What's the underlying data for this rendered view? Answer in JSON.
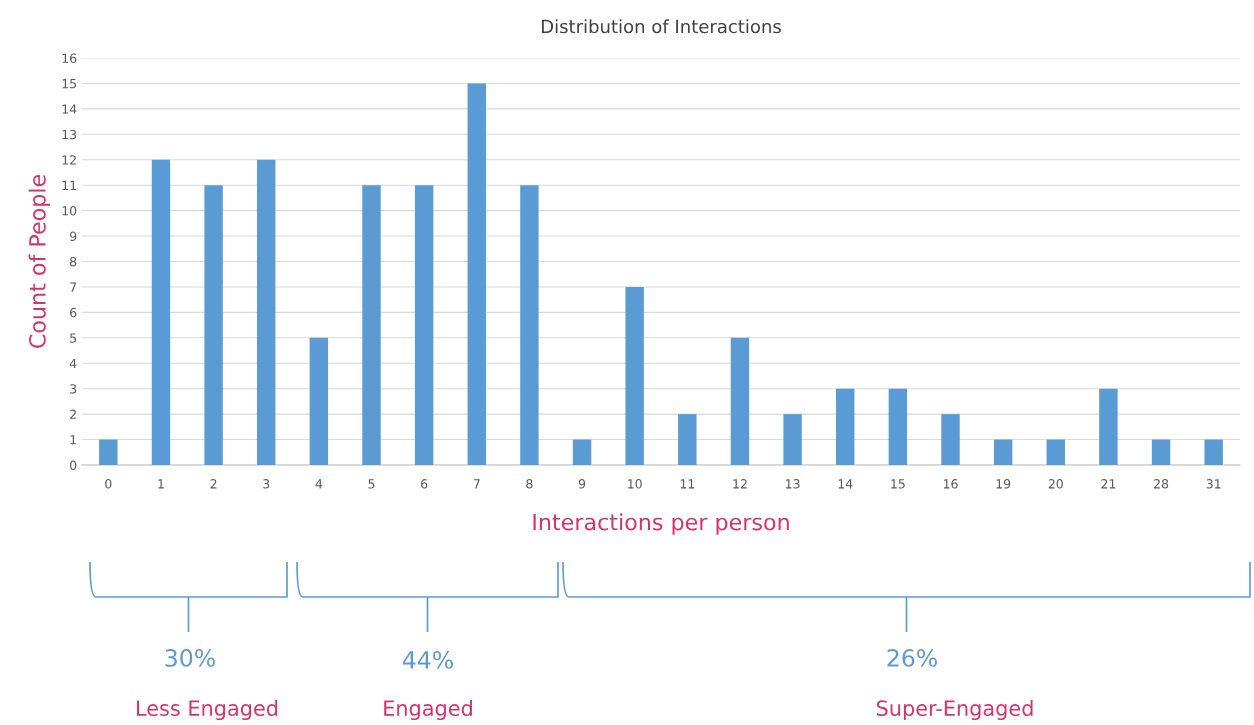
{
  "chart_data": {
    "type": "bar",
    "title": "Distribution of Interactions",
    "xlabel": "Interactions per person",
    "ylabel": "Count of People",
    "categories": [
      "0",
      "1",
      "2",
      "3",
      "4",
      "5",
      "6",
      "7",
      "8",
      "9",
      "10",
      "11",
      "12",
      "13",
      "14",
      "15",
      "16",
      "19",
      "20",
      "21",
      "28",
      "31"
    ],
    "values": [
      1,
      12,
      11,
      12,
      5,
      11,
      11,
      15,
      11,
      1,
      7,
      2,
      5,
      2,
      3,
      3,
      2,
      1,
      1,
      3,
      1,
      1
    ],
    "color": "#5b9bd5",
    "ylim": [
      0,
      16
    ],
    "yticks": [
      0,
      1,
      2,
      3,
      4,
      5,
      6,
      7,
      8,
      9,
      10,
      11,
      12,
      13,
      14,
      15,
      16
    ],
    "grid": "y",
    "annotations": [
      "30%",
      "Less Engaged",
      "44%",
      "Engaged",
      "26%",
      "Super-Engaged"
    ]
  }
}
